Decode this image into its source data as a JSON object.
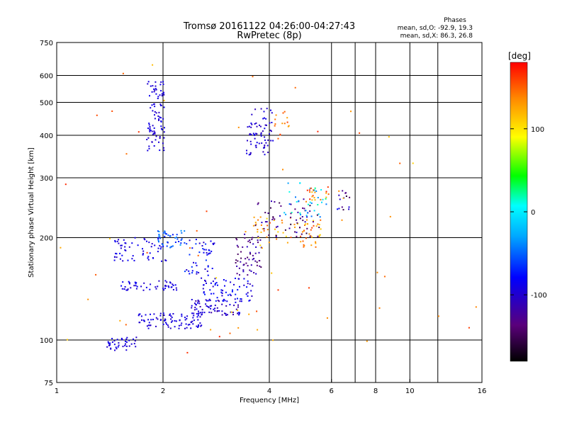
{
  "chart_data": {
    "type": "scatter",
    "title": "Tromsø 20161122 04:26:00-04:27:43",
    "subtitle": "RwPretec (8p)",
    "xlabel": "Frequency [MHz]",
    "ylabel": "Stationary phase Virtual Height [km]",
    "x_scale": "log",
    "y_scale": "log",
    "xlim": [
      1,
      16
    ],
    "ylim": [
      75,
      750
    ],
    "x_ticks": [
      "1",
      "2",
      "4",
      "6",
      "8",
      "10",
      "16"
    ],
    "x_tick_values": [
      1,
      2,
      4,
      6,
      8,
      10,
      16
    ],
    "x_gridlines": [
      2,
      4,
      6,
      7,
      8,
      10,
      12
    ],
    "y_ticks": [
      "75",
      "100",
      "200",
      "300",
      "400",
      "500",
      "600",
      "750"
    ],
    "y_tick_values": [
      75,
      100,
      200,
      300,
      400,
      500,
      600,
      750
    ],
    "y_gridlines": [
      100,
      200,
      300,
      400,
      500,
      600
    ],
    "grid": true,
    "info_header": "Phases",
    "info_lines": [
      "mean, sd,O:  -92.9, 19.3",
      "mean, sd,X:   86.3, 26.8"
    ],
    "colorbar": {
      "label": "[deg]",
      "ticks": [
        "100",
        "0",
        "-100"
      ],
      "tick_values": [
        100,
        0,
        -100
      ],
      "range": [
        -180,
        180
      ],
      "colors": [
        "#000000",
        "#5a007a",
        "#0000ff",
        "#00aaff",
        "#00ffff",
        "#00ff00",
        "#ffff00",
        "#ff8800",
        "#ff0000"
      ]
    },
    "clusters": [
      {
        "freq": [
          1.8,
          2.02
        ],
        "height": [
          355,
          580
        ],
        "phase": [
          -105,
          -85
        ],
        "count": 90
      },
      {
        "freq": [
          3.45,
          4.1
        ],
        "height": [
          350,
          480
        ],
        "phase": [
          -110,
          -85
        ],
        "count": 70
      },
      {
        "freq": [
          4.1,
          4.6
        ],
        "height": [
          400,
          470
        ],
        "phase": [
          120,
          160
        ],
        "count": 14
      },
      {
        "freq": [
          1.38,
          1.7
        ],
        "height": [
          93,
          102
        ],
        "phase": [
          -105,
          -85
        ],
        "count": 40
      },
      {
        "freq": [
          1.7,
          2.6
        ],
        "height": [
          108,
          120
        ],
        "phase": [
          -105,
          -85
        ],
        "count": 90
      },
      {
        "freq": [
          2.4,
          3.3
        ],
        "height": [
          118,
          132
        ],
        "phase": [
          -120,
          -80
        ],
        "count": 70
      },
      {
        "freq": [
          2.6,
          3.6
        ],
        "height": [
          128,
          152
        ],
        "phase": [
          -110,
          -70
        ],
        "count": 70
      },
      {
        "freq": [
          3.2,
          3.8
        ],
        "height": [
          155,
          205
        ],
        "phase": [
          -150,
          -100
        ],
        "count": 60
      },
      {
        "freq": [
          1.5,
          2.2
        ],
        "height": [
          140,
          150
        ],
        "phase": [
          -105,
          -80
        ],
        "count": 50
      },
      {
        "freq": [
          1.45,
          2.1
        ],
        "height": [
          170,
          200
        ],
        "phase": [
          -105,
          -80
        ],
        "count": 60
      },
      {
        "freq": [
          1.9,
          2.3
        ],
        "height": [
          185,
          210
        ],
        "phase": [
          -80,
          -30
        ],
        "count": 40
      },
      {
        "freq": [
          2.3,
          2.9
        ],
        "height": [
          150,
          200
        ],
        "phase": [
          -110,
          -60
        ],
        "count": 50
      },
      {
        "freq": [
          3.6,
          5.6
        ],
        "height": [
          185,
          230
        ],
        "phase": [
          100,
          160
        ],
        "count": 70
      },
      {
        "freq": [
          3.6,
          5.6
        ],
        "height": [
          200,
          260
        ],
        "phase": [
          -160,
          -100
        ],
        "count": 60
      },
      {
        "freq": [
          4.4,
          5.8
        ],
        "height": [
          230,
          290
        ],
        "phase": [
          -50,
          30
        ],
        "count": 35
      },
      {
        "freq": [
          5.0,
          5.9
        ],
        "height": [
          255,
          285
        ],
        "phase": [
          110,
          170
        ],
        "count": 20
      },
      {
        "freq": [
          6.2,
          6.9
        ],
        "height": [
          240,
          275
        ],
        "phase": [
          -160,
          -60
        ],
        "count": 14
      },
      {
        "freq": [
          1.0,
          15.5
        ],
        "height": [
          90,
          650
        ],
        "phase": [
          100,
          170
        ],
        "count": 60
      }
    ]
  }
}
